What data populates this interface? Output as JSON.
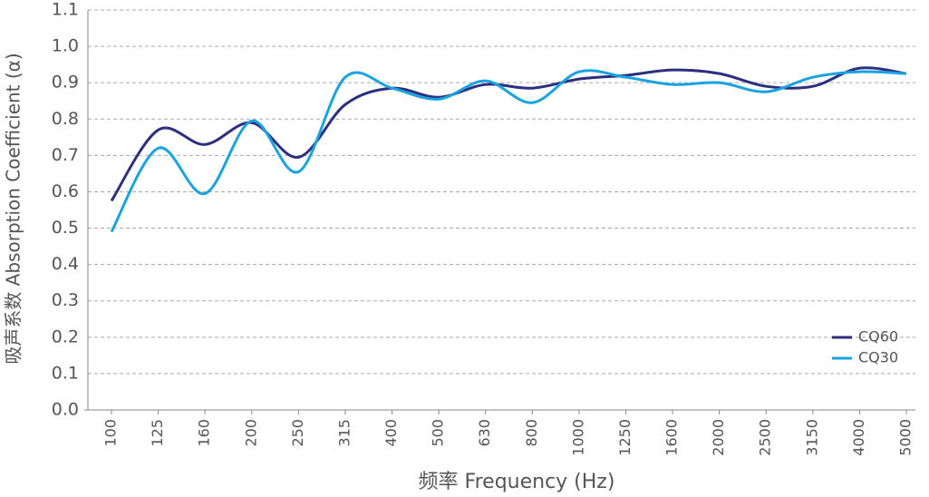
{
  "chart_data": {
    "type": "line",
    "y_label": "吸声系数 Absorption Coefficient (α)",
    "x_label": "频率 Frequency (Hz)",
    "categories": [
      "100",
      "125",
      "160",
      "200",
      "250",
      "315",
      "400",
      "500",
      "630",
      "800",
      "1000",
      "1250",
      "1600",
      "2000",
      "2500",
      "3150",
      "4000",
      "5000"
    ],
    "series": [
      {
        "name": "CQ60",
        "color": "#2b2f7f",
        "values": [
          0.575,
          0.77,
          0.73,
          0.79,
          0.695,
          0.84,
          0.885,
          0.86,
          0.895,
          0.885,
          0.91,
          0.92,
          0.935,
          0.925,
          0.89,
          0.89,
          0.94,
          0.925
        ]
      },
      {
        "name": "CQ30",
        "color": "#1aa3e0",
        "values": [
          0.49,
          0.72,
          0.595,
          0.795,
          0.655,
          0.915,
          0.885,
          0.855,
          0.905,
          0.845,
          0.93,
          0.915,
          0.895,
          0.9,
          0.875,
          0.915,
          0.93,
          0.925
        ]
      }
    ],
    "ylim": [
      0,
      1.1
    ],
    "yticks": [
      {
        "value": 0,
        "label": "0.0"
      },
      0.1,
      0.2,
      0.3,
      0.4,
      0.5,
      0.6,
      0.7,
      0.8,
      0.9,
      {
        "value": 1,
        "label": "1.0"
      },
      1.1
    ],
    "grid": true,
    "legend": "lower right"
  }
}
